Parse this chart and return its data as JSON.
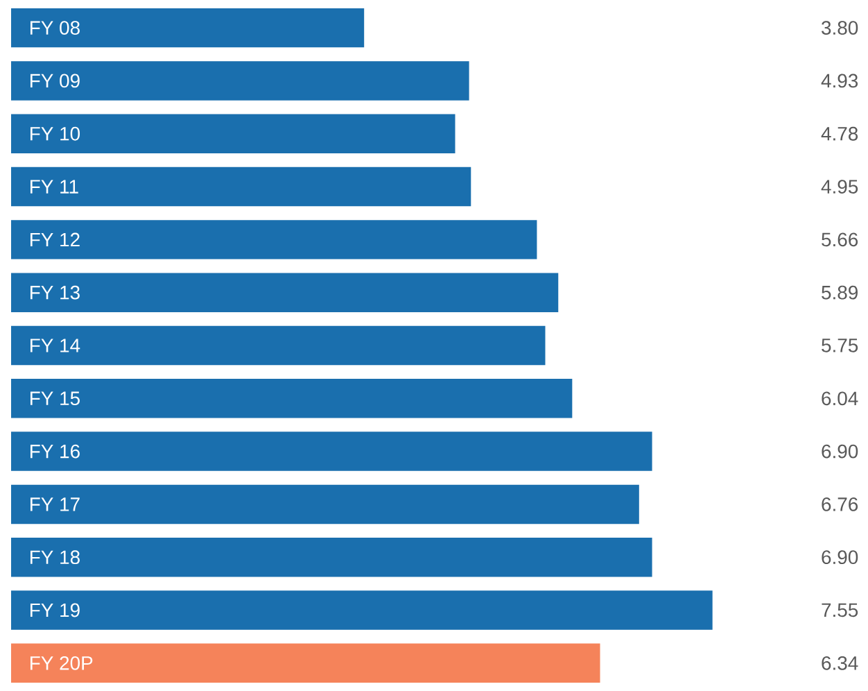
{
  "chart_data": {
    "type": "bar",
    "orientation": "horizontal",
    "categories": [
      "FY 08",
      "FY 09",
      "FY 10",
      "FY 11",
      "FY 12",
      "FY 13",
      "FY 14",
      "FY 15",
      "FY 16",
      "FY 17",
      "FY 18",
      "FY 19",
      "FY 20P"
    ],
    "values": [
      3.8,
      4.93,
      4.78,
      4.95,
      5.66,
      5.89,
      5.75,
      6.04,
      6.9,
      6.76,
      6.9,
      7.55,
      6.34
    ],
    "colors": [
      "#1a6fae",
      "#1a6fae",
      "#1a6fae",
      "#1a6fae",
      "#1a6fae",
      "#1a6fae",
      "#1a6fae",
      "#1a6fae",
      "#1a6fae",
      "#1a6fae",
      "#1a6fae",
      "#1a6fae",
      "#f5835a"
    ],
    "value_labels": [
      "3.80",
      "4.93",
      "4.78",
      "4.95",
      "5.66",
      "5.89",
      "5.75",
      "6.04",
      "6.90",
      "6.76",
      "6.90",
      "7.55",
      "6.34"
    ]
  }
}
